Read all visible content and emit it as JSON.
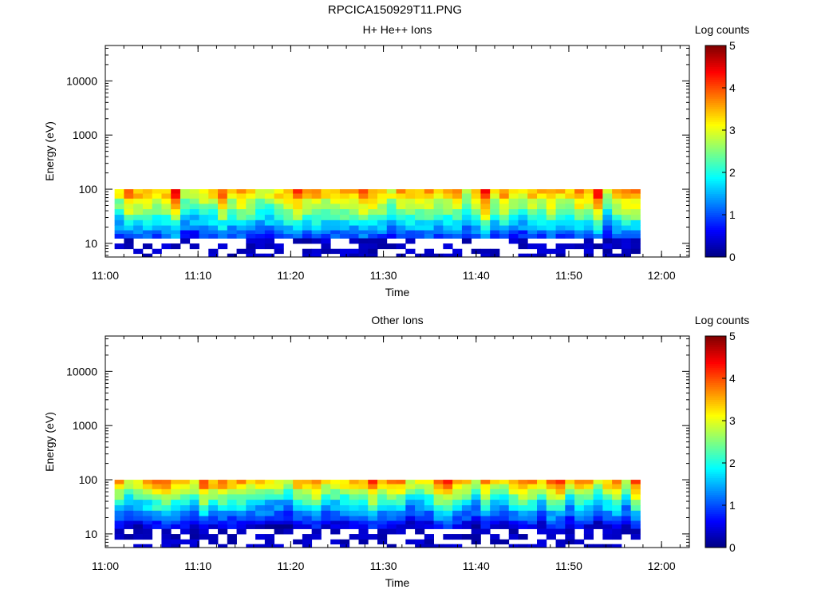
{
  "page": {
    "title": "RPCICA150929T11.PNG"
  },
  "chart_data": [
    {
      "type": "heatmap",
      "title": "H+ He++ Ions",
      "xlabel": "Time",
      "ylabel": "Energy (eV)",
      "xticks": [
        "11:00",
        "11:10",
        "11:20",
        "11:30",
        "11:40",
        "11:50",
        "12:00"
      ],
      "xlim": [
        "11:00",
        "12:03"
      ],
      "ylim": [
        5.6,
        45000
      ],
      "yscale": "log",
      "yticks": [
        "10",
        "100",
        "1000",
        "10000"
      ],
      "data_extent": {
        "time_start": "11:01",
        "time_end": "11:57",
        "energy_min": 5.6,
        "energy_max": 100
      },
      "colorbar": {
        "label": "Log counts",
        "range": [
          0,
          5
        ],
        "ticks": [
          "0",
          "1",
          "2",
          "3",
          "4",
          "5"
        ],
        "colormap": "jet"
      },
      "energy_profile": [
        {
          "energy": 92,
          "log_counts": 3.3
        },
        {
          "energy": 75,
          "log_counts": 3.2
        },
        {
          "energy": 60,
          "log_counts": 2.8
        },
        {
          "energy": 48,
          "log_counts": 2.6
        },
        {
          "energy": 38,
          "log_counts": 2.3
        },
        {
          "energy": 30,
          "log_counts": 2.0
        },
        {
          "energy": 24,
          "log_counts": 1.7
        },
        {
          "energy": 19,
          "log_counts": 1.4
        },
        {
          "energy": 16,
          "log_counts": 1.1
        },
        {
          "energy": 14,
          "log_counts": 0.9
        },
        {
          "energy": 11,
          "log_counts": 0.5
        },
        {
          "energy": 9,
          "log_counts": 0.3
        },
        {
          "energy": 7,
          "log_counts": 0.25
        },
        {
          "energy": 6,
          "log_counts": 0.2
        }
      ],
      "seed": 7
    },
    {
      "type": "heatmap",
      "title": "Other Ions",
      "xlabel": "Time",
      "ylabel": "Energy (eV)",
      "xticks": [
        "11:00",
        "11:10",
        "11:20",
        "11:30",
        "11:40",
        "11:50",
        "12:00"
      ],
      "xlim": [
        "11:00",
        "12:03"
      ],
      "ylim": [
        5.6,
        45000
      ],
      "yscale": "log",
      "yticks": [
        "10",
        "100",
        "1000",
        "10000"
      ],
      "data_extent": {
        "time_start": "11:01",
        "time_end": "11:57",
        "energy_min": 5.6,
        "energy_max": 100
      },
      "colorbar": {
        "label": "Log counts",
        "range": [
          0,
          5
        ],
        "ticks": [
          "0",
          "1",
          "2",
          "3",
          "4",
          "5"
        ],
        "colormap": "jet"
      },
      "energy_profile": [
        {
          "energy": 92,
          "log_counts": 3.3
        },
        {
          "energy": 75,
          "log_counts": 3.0
        },
        {
          "energy": 60,
          "log_counts": 2.6
        },
        {
          "energy": 48,
          "log_counts": 2.2
        },
        {
          "energy": 38,
          "log_counts": 1.8
        },
        {
          "energy": 30,
          "log_counts": 1.5
        },
        {
          "energy": 24,
          "log_counts": 1.2
        },
        {
          "energy": 19,
          "log_counts": 0.9
        },
        {
          "energy": 16,
          "log_counts": 0.6
        },
        {
          "energy": 14,
          "log_counts": 0.4
        },
        {
          "energy": 11,
          "log_counts": 0.2
        },
        {
          "energy": 9,
          "log_counts": 0.15
        },
        {
          "energy": 7,
          "log_counts": 0.1
        },
        {
          "energy": 6,
          "log_counts": 0.1
        }
      ],
      "seed": 19
    }
  ]
}
